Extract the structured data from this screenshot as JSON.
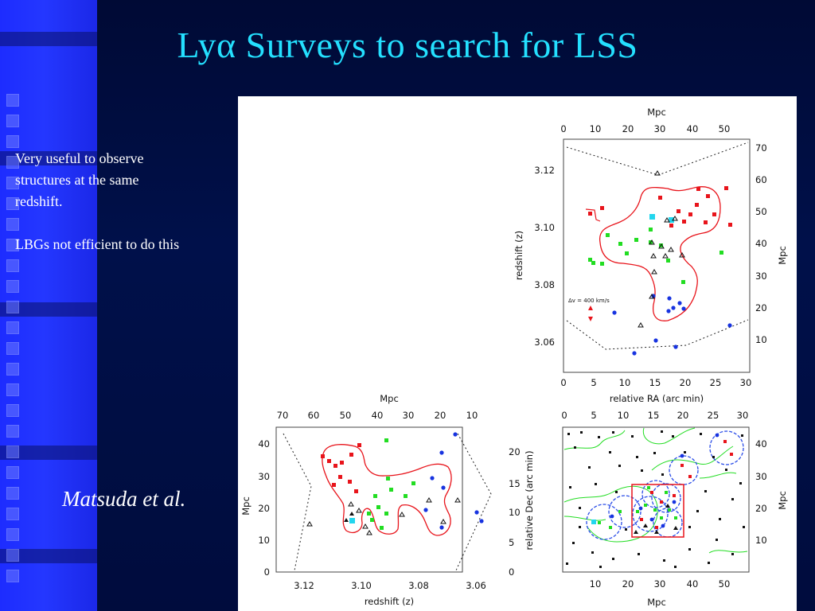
{
  "slide": {
    "title": "Lyα Surveys to search for LSS",
    "body_lines": [
      "Very useful to observe",
      "structures at the same",
      "redshift.",
      "LBGs not efficient to do this"
    ],
    "citation": "Matsuda et al."
  },
  "figure": {
    "panel_top": {
      "top_axis_label": "Mpc",
      "top_ticks": [
        "0",
        "10",
        "20",
        "30",
        "40",
        "50"
      ],
      "left_axis_label": "redshift (z)",
      "left_ticks": [
        "3.12",
        "3.10",
        "3.08",
        "3.06"
      ],
      "right_axis_label": "Mpc",
      "right_ticks": [
        "70",
        "60",
        "50",
        "40",
        "30",
        "20",
        "10"
      ],
      "bottom_axis_label": "relative RA (arc min)",
      "bottom_ticks": [
        "0",
        "5",
        "10",
        "15",
        "20",
        "25",
        "30"
      ],
      "annotation": "Δv = 400 km/s"
    },
    "panel_bottom_left": {
      "top_axis_label": "Mpc",
      "top_ticks": [
        "70",
        "60",
        "50",
        "40",
        "30",
        "20",
        "10"
      ],
      "left_axis_label": "Mpc",
      "left_ticks": [
        "40",
        "30",
        "20",
        "10",
        "0"
      ],
      "right_axis_label": "relative Dec (arc min)",
      "right_ticks": [
        "20",
        "15",
        "10",
        "5",
        "0"
      ],
      "bottom_axis_label": "redshift (z)",
      "bottom_ticks": [
        "3.12",
        "3.10",
        "3.08",
        "3.06"
      ]
    },
    "panel_bottom_right": {
      "top_ticks": [
        "0",
        "5",
        "10",
        "15",
        "20",
        "25",
        "30"
      ],
      "right_axis_label": "Mpc",
      "right_ticks": [
        "40",
        "30",
        "20",
        "10"
      ],
      "bottom_axis_label": "Mpc",
      "bottom_ticks": [
        "10",
        "20",
        "30",
        "40",
        "50"
      ]
    },
    "colors": {
      "red": "#e8141b",
      "green": "#22dd22",
      "blue": "#1733e0",
      "cyan": "#22d6ee",
      "contour": "#e8141b",
      "circle": "#2a4de8"
    }
  }
}
